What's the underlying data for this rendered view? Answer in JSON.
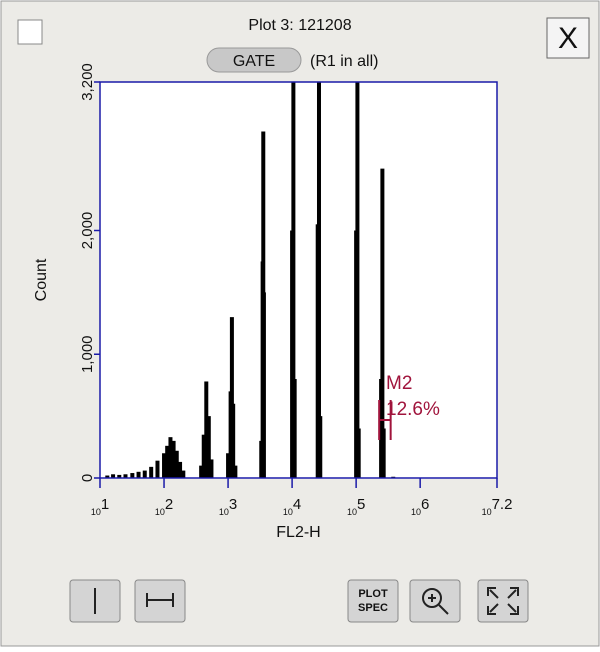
{
  "window": {
    "title": "Plot 3: 121208",
    "gate_button": "GATE",
    "gate_text": "(R1 in all)",
    "close_button": "X",
    "plot_spec_button": [
      "PLOT",
      "SPEC"
    ]
  },
  "chart_data": {
    "type": "histogram",
    "x_label": "FL2-H",
    "y_label": "Count",
    "x_log": true,
    "color": "#000000",
    "axis_color": "#1a1aa8",
    "xlim": [
      10,
      15848932
    ],
    "ylim": [
      0,
      3200
    ],
    "xticks": [
      {
        "value": 10,
        "label": "10",
        "exponent": "1"
      },
      {
        "value": 100,
        "label": "10",
        "exponent": "2"
      },
      {
        "value": 1000,
        "label": "10",
        "exponent": "3"
      },
      {
        "value": 10000,
        "label": "10",
        "exponent": "4"
      },
      {
        "value": 100000,
        "label": "10",
        "exponent": "5"
      },
      {
        "value": 1000000,
        "label": "10",
        "exponent": "6"
      },
      {
        "value": 15848932,
        "label": "10",
        "exponent": "7.2"
      }
    ],
    "yticks": [
      0,
      {
        "value": 1000,
        "label": "1,000"
      },
      {
        "value": 2000,
        "label": "2,000"
      },
      {
        "value": 3200,
        "label": "3,200"
      }
    ],
    "x": [
      13,
      16,
      20,
      25,
      32,
      40,
      50,
      63,
      79,
      100,
      112,
      126,
      141,
      158,
      178,
      200,
      380,
      417,
      457,
      500,
      550,
      1000,
      1096,
      1148,
      1202,
      1300,
      3300,
      3467,
      3548,
      3630,
      10000,
      10471,
      10965,
      25119,
      26303,
      27542,
      100000,
      104713,
      109648,
      245471,
      257040,
      269153,
      380000
    ],
    "values": [
      20,
      30,
      25,
      30,
      40,
      50,
      60,
      90,
      140,
      200,
      260,
      330,
      300,
      220,
      130,
      60,
      100,
      350,
      780,
      500,
      150,
      200,
      700,
      1300,
      600,
      100,
      300,
      1750,
      2800,
      1500,
      2000,
      3200,
      800,
      2050,
      3200,
      500,
      2000,
      3200,
      400,
      800,
      2500,
      400,
      10
    ],
    "marker": {
      "name": "M2",
      "percent": "12.6%",
      "range": [
        229000,
        346000
      ],
      "color": "#a0143c"
    }
  }
}
